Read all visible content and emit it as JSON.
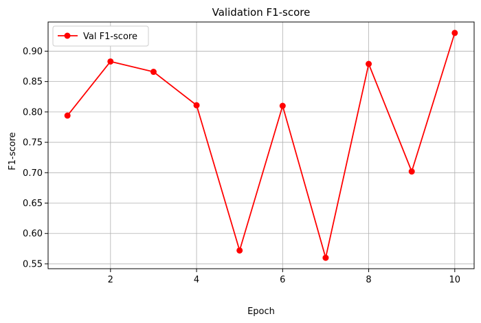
{
  "chart_data": {
    "type": "line",
    "title": "Validation F1-score",
    "xlabel": "Epoch",
    "ylabel": "F1-score",
    "xlim": [
      0.55,
      10.45
    ],
    "ylim": [
      0.542,
      0.948
    ],
    "xticks": [
      2,
      4,
      6,
      8,
      10
    ],
    "xtick_labels": [
      "2",
      "4",
      "6",
      "8",
      "10"
    ],
    "yticks": [
      0.55,
      0.6,
      0.65,
      0.7,
      0.75,
      0.8,
      0.85,
      0.9
    ],
    "ytick_labels": [
      "0.55",
      "0.60",
      "0.65",
      "0.70",
      "0.75",
      "0.80",
      "0.85",
      "0.90"
    ],
    "grid": true,
    "legend_position": "top-left",
    "series": [
      {
        "name": "Val F1-score",
        "color": "#ff0000",
        "marker": "circle",
        "x": [
          1,
          2,
          3,
          4,
          5,
          6,
          7,
          8,
          9,
          10
        ],
        "y": [
          0.794,
          0.883,
          0.866,
          0.811,
          0.572,
          0.81,
          0.56,
          0.879,
          0.702,
          0.93
        ]
      }
    ]
  }
}
